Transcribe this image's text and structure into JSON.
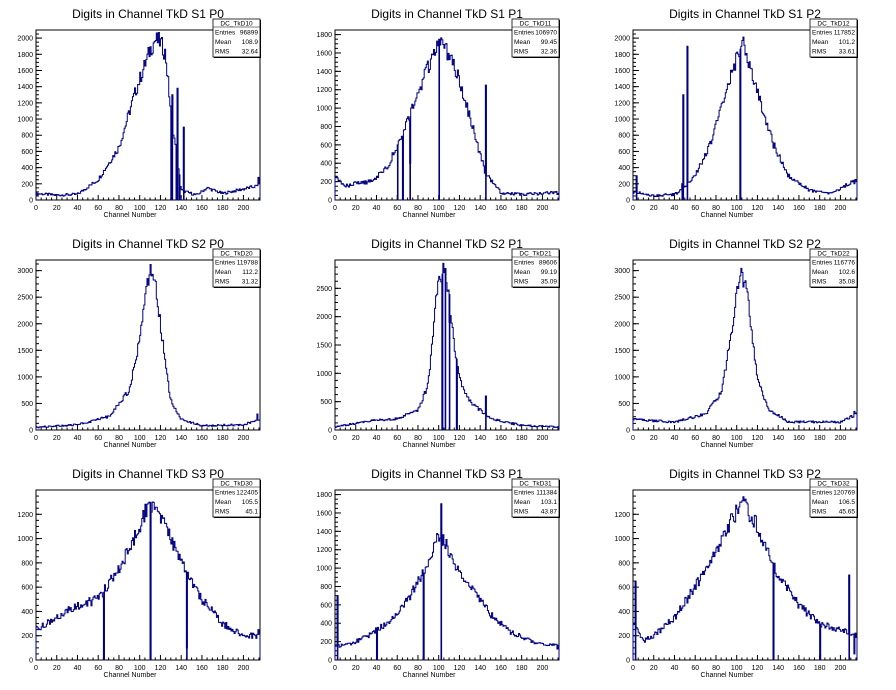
{
  "chart_data": [
    {
      "type": "histogram",
      "title": "Digits in Channel TkD S1 P0",
      "xlabel": "Channel Number",
      "ylabel": "",
      "xlim": [
        0,
        216
      ],
      "ylim": [
        0,
        2100
      ],
      "xticks": [
        0,
        20,
        40,
        60,
        80,
        100,
        120,
        140,
        160,
        180,
        200
      ],
      "yticks": [
        0,
        200,
        400,
        600,
        800,
        1000,
        1200,
        1400,
        1600,
        1800,
        2000
      ],
      "stats": {
        "name": "DC_TkD10",
        "entries": "96899",
        "mean": "108.9",
        "rms": "32.64"
      },
      "profile": {
        "x": [
          0,
          20,
          40,
          60,
          80,
          95,
          110,
          115,
          120,
          125,
          130,
          140,
          155,
          165,
          180,
          216
        ],
        "y": [
          80,
          60,
          70,
          250,
          650,
          1300,
          1850,
          1980,
          1950,
          1800,
          1100,
          120,
          60,
          150,
          80,
          180
        ]
      },
      "spikes": [
        {
          "x": 130,
          "y": 0
        },
        {
          "x": 131,
          "y": 1300
        },
        {
          "x": 135,
          "y": 0
        },
        {
          "x": 136,
          "y": 1380
        },
        {
          "x": 138,
          "y": 0
        },
        {
          "x": 142,
          "y": 900
        }
      ],
      "tail": {
        "x": 214,
        "y": 280
      }
    },
    {
      "type": "histogram",
      "title": "Digits in Channel TkD S1 P1",
      "xlabel": "Channel Number",
      "ylabel": "",
      "xlim": [
        0,
        216
      ],
      "ylim": [
        0,
        1850
      ],
      "xticks": [
        0,
        20,
        40,
        60,
        80,
        100,
        120,
        140,
        160,
        180,
        200
      ],
      "yticks": [
        0,
        200,
        400,
        600,
        800,
        1000,
        1200,
        1400,
        1600,
        1800
      ],
      "stats": {
        "name": "DC_TkD11",
        "entries": "106970",
        "mean": "99.45",
        "rms": "32.36"
      },
      "profile": {
        "x": [
          0,
          10,
          20,
          35,
          50,
          65,
          80,
          90,
          100,
          110,
          120,
          130,
          145,
          160,
          180,
          216
        ],
        "y": [
          250,
          150,
          180,
          200,
          350,
          700,
          1150,
          1450,
          1700,
          1600,
          1300,
          900,
          300,
          80,
          60,
          80
        ]
      },
      "spikes": [
        {
          "x": 60,
          "y": 600
        },
        {
          "x": 65,
          "y": 0
        },
        {
          "x": 72,
          "y": 400
        },
        {
          "x": 100,
          "y": 1750
        },
        {
          "x": 145,
          "y": 1250
        }
      ],
      "tail": {
        "x": 214,
        "y": 60
      }
    },
    {
      "type": "histogram",
      "title": "Digits in Channel TkD S1 P2",
      "xlabel": "Channel Number",
      "ylabel": "",
      "xlim": [
        0,
        216
      ],
      "ylim": [
        0,
        2100
      ],
      "xticks": [
        0,
        20,
        40,
        60,
        80,
        100,
        120,
        140,
        160,
        180,
        200
      ],
      "yticks": [
        0,
        200,
        400,
        600,
        800,
        1000,
        1200,
        1400,
        1600,
        1800,
        2000
      ],
      "stats": {
        "name": "DC_TkD12",
        "entries": "117852",
        "mean": "101.2",
        "rms": "33.61"
      },
      "profile": {
        "x": [
          0,
          20,
          40,
          50,
          60,
          75,
          90,
          100,
          105,
          110,
          120,
          135,
          150,
          170,
          190,
          216
        ],
        "y": [
          100,
          50,
          70,
          150,
          300,
          700,
          1350,
          1750,
          1950,
          1800,
          1350,
          700,
          300,
          120,
          80,
          250
        ]
      },
      "spikes": [
        {
          "x": 3,
          "y": 300
        },
        {
          "x": 47,
          "y": 200
        },
        {
          "x": 48,
          "y": 1300
        },
        {
          "x": 52,
          "y": 1900
        },
        {
          "x": 103,
          "y": 0
        }
      ],
      "tail": {
        "x": 213,
        "y": 200
      }
    },
    {
      "type": "histogram",
      "title": "Digits in Channel TkD S2 P0",
      "xlabel": "Channel Number",
      "ylabel": "",
      "xlim": [
        0,
        216
      ],
      "ylim": [
        0,
        3200
      ],
      "xticks": [
        0,
        20,
        40,
        60,
        80,
        100,
        120,
        140,
        160,
        180,
        200
      ],
      "yticks": [
        0,
        500,
        1000,
        1500,
        2000,
        2500,
        3000
      ],
      "stats": {
        "name": "DC_TkD20",
        "entries": "119788",
        "mean": "112.2",
        "rms": "31.32"
      },
      "profile": {
        "x": [
          0,
          40,
          70,
          90,
          100,
          105,
          110,
          115,
          120,
          125,
          130,
          140,
          160,
          200,
          216
        ],
        "y": [
          50,
          100,
          250,
          750,
          1700,
          2500,
          3000,
          2800,
          2000,
          1200,
          550,
          200,
          80,
          100,
          200
        ]
      },
      "spikes": [],
      "tail": {
        "x": 213,
        "y": 300
      }
    },
    {
      "type": "histogram",
      "title": "Digits in Channel TkD S2 P1",
      "xlabel": "Channel Number",
      "ylabel": "",
      "xlim": [
        0,
        216
      ],
      "ylim": [
        0,
        3000
      ],
      "xticks": [
        0,
        20,
        40,
        60,
        80,
        100,
        120,
        140,
        160,
        180,
        200
      ],
      "yticks": [
        0,
        500,
        1000,
        1500,
        2000,
        2500
      ],
      "stats": {
        "name": "DC_TkD21",
        "entries": "89606",
        "mean": "99.19",
        "rms": "35.09"
      },
      "profile": {
        "x": [
          0,
          30,
          60,
          80,
          90,
          95,
          100,
          105,
          110,
          115,
          120,
          130,
          150,
          180,
          216
        ],
        "y": [
          50,
          150,
          200,
          350,
          800,
          1800,
          2700,
          2800,
          2400,
          1500,
          900,
          500,
          200,
          80,
          50
        ]
      },
      "spikes": [
        {
          "x": 103,
          "y": 0
        },
        {
          "x": 106,
          "y": 2850
        },
        {
          "x": 110,
          "y": 1900
        },
        {
          "x": 117,
          "y": 0
        },
        {
          "x": 145,
          "y": 600
        }
      ],
      "tail": {
        "x": 214,
        "y": 50
      }
    },
    {
      "type": "histogram",
      "title": "Digits in Channel TkD S2 P2",
      "xlabel": "Channel Number",
      "ylabel": "",
      "xlim": [
        0,
        216
      ],
      "ylim": [
        0,
        3200
      ],
      "xticks": [
        0,
        20,
        40,
        60,
        80,
        100,
        120,
        140,
        160,
        180,
        200
      ],
      "yticks": [
        0,
        500,
        1000,
        1500,
        2000,
        2500,
        3000
      ],
      "stats": {
        "name": "DC_TkD22",
        "entries": "116776",
        "mean": "102.6",
        "rms": "35.08"
      },
      "profile": {
        "x": [
          0,
          40,
          70,
          85,
          95,
          100,
          105,
          110,
          115,
          120,
          130,
          150,
          200,
          216
        ],
        "y": [
          200,
          150,
          300,
          700,
          1800,
          2600,
          2950,
          2600,
          1800,
          1000,
          400,
          150,
          150,
          300
        ]
      },
      "spikes": [],
      "tail": {
        "x": 213,
        "y": 350
      }
    },
    {
      "type": "histogram",
      "title": "Digits in Channel TkD S3 P0",
      "xlabel": "Channel Number",
      "ylabel": "",
      "xlim": [
        0,
        216
      ],
      "ylim": [
        0,
        1400
      ],
      "xticks": [
        0,
        20,
        40,
        60,
        80,
        100,
        120,
        140,
        160,
        180,
        200
      ],
      "yticks": [
        0,
        200,
        400,
        600,
        800,
        1000,
        1200
      ],
      "stats": {
        "name": "DC_TkD30",
        "entries": "122405",
        "mean": "105.5",
        "rms": "45.1"
      },
      "profile": {
        "x": [
          0,
          10,
          20,
          40,
          60,
          80,
          95,
          105,
          110,
          120,
          130,
          140,
          160,
          180,
          200,
          216
        ],
        "y": [
          250,
          300,
          350,
          450,
          500,
          750,
          1000,
          1200,
          1300,
          1200,
          1000,
          800,
          500,
          300,
          200,
          200
        ]
      },
      "spikes": [
        {
          "x": 65,
          "y": 0
        },
        {
          "x": 110,
          "y": 0
        },
        {
          "x": 145,
          "y": 100
        }
      ],
      "tail": {
        "x": 214,
        "y": 250
      }
    },
    {
      "type": "histogram",
      "title": "Digits in Channel TkD S3 P1",
      "xlabel": "Channel Number",
      "ylabel": "",
      "xlim": [
        0,
        216
      ],
      "ylim": [
        0,
        1850
      ],
      "xticks": [
        0,
        20,
        40,
        60,
        80,
        100,
        120,
        140,
        160,
        180,
        200
      ],
      "yticks": [
        0,
        200,
        400,
        600,
        800,
        1000,
        1200,
        1400,
        1600,
        1800
      ],
      "stats": {
        "name": "DC_TkD31",
        "entries": "111384",
        "mean": "103.1",
        "rms": "43.87"
      },
      "profile": {
        "x": [
          0,
          15,
          30,
          50,
          70,
          85,
          95,
          100,
          105,
          115,
          130,
          150,
          170,
          190,
          216
        ],
        "y": [
          150,
          180,
          250,
          400,
          650,
          950,
          1200,
          1350,
          1300,
          1050,
          800,
          500,
          300,
          200,
          150
        ]
      },
      "spikes": [
        {
          "x": 2,
          "y": 700
        },
        {
          "x": 40,
          "y": 0
        },
        {
          "x": 85,
          "y": 0
        },
        {
          "x": 102,
          "y": 1700
        }
      ],
      "tail": {
        "x": 214,
        "y": 120
      }
    },
    {
      "type": "histogram",
      "title": "Digits in Channel TkD S3 P2",
      "xlabel": "Channel Number",
      "ylabel": "",
      "xlim": [
        0,
        216
      ],
      "ylim": [
        0,
        1400
      ],
      "xticks": [
        0,
        20,
        40,
        60,
        80,
        100,
        120,
        140,
        160,
        180,
        200
      ],
      "yticks": [
        0,
        200,
        400,
        600,
        800,
        1000,
        1200
      ],
      "stats": {
        "name": "DC_TkD32",
        "entries": "120769",
        "mean": "106.5",
        "rms": "45.65"
      },
      "profile": {
        "x": [
          0,
          10,
          20,
          40,
          60,
          80,
          95,
          105,
          110,
          120,
          130,
          140,
          160,
          180,
          200,
          216
        ],
        "y": [
          300,
          150,
          200,
          350,
          600,
          900,
          1150,
          1300,
          1250,
          1100,
          900,
          700,
          450,
          300,
          250,
          200
        ]
      },
      "spikes": [
        {
          "x": 2,
          "y": 650
        },
        {
          "x": 135,
          "y": 0
        },
        {
          "x": 180,
          "y": 0
        },
        {
          "x": 208,
          "y": 700
        }
      ],
      "tail": {
        "x": 213,
        "y": 50
      }
    }
  ],
  "stats_labels": {
    "entries": "Entries",
    "mean": "Mean",
    "rms": "RMS"
  },
  "colors": {
    "histogram": "#000080",
    "axes": "#000000",
    "background": "#ffffff"
  }
}
